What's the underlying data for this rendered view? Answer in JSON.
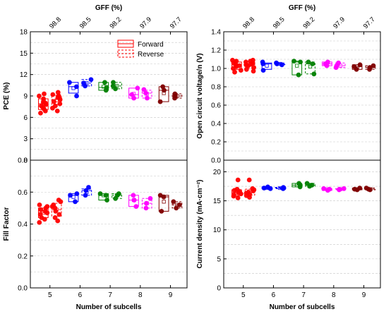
{
  "colors": [
    "#ff0000",
    "#0000ff",
    "#008000",
    "#ff00ff",
    "#800000"
  ],
  "chart_data": [
    {
      "type": "box",
      "panel": "top-left",
      "ylabel": "PCE (%)",
      "top_axis_label": "GFF (%)",
      "top_ticks": [
        "98.8",
        "98.5",
        "98.2",
        "97.9",
        "97.7"
      ],
      "x_ticks": [
        "5",
        "6",
        "7",
        "8",
        "9"
      ],
      "xlabel": "",
      "ylim": [
        0,
        18
      ],
      "yticks": [
        0,
        3,
        6,
        9,
        12,
        15,
        18
      ],
      "legend": {
        "position": "top-right",
        "entries": [
          "Forward",
          "Reverse"
        ]
      },
      "series": [
        {
          "name": "Forward",
          "boxes": [
            {
              "x": 5,
              "q1": 7.1,
              "q3": 8.6,
              "median": 7.9,
              "mean": 7.9,
              "points": [
                6.6,
                6.9,
                7.2,
                7.4,
                7.6,
                7.8,
                8.0,
                8.1,
                8.3,
                8.6,
                9.0,
                9.3
              ]
            },
            {
              "x": 6,
              "q1": 9.4,
              "q3": 10.9,
              "median": 10.3,
              "mean": 10.1,
              "points": [
                9.0,
                10.3,
                10.9
              ]
            },
            {
              "x": 7,
              "q1": 9.8,
              "q3": 10.9,
              "median": 10.2,
              "mean": 10.3,
              "points": [
                9.8,
                10.2,
                10.9
              ]
            },
            {
              "x": 8,
              "q1": 8.7,
              "q3": 10.1,
              "median": 9.2,
              "mean": 9.3,
              "points": [
                8.7,
                9.2,
                10.1
              ]
            },
            {
              "x": 9,
              "q1": 8.2,
              "q3": 10.3,
              "median": 9.8,
              "mean": 9.4,
              "points": [
                8.2,
                9.8,
                10.3
              ]
            }
          ]
        },
        {
          "name": "Reverse",
          "boxes": [
            {
              "x": 5,
              "q1": 7.8,
              "q3": 9.1,
              "median": 8.5,
              "mean": 8.4,
              "points": [
                6.9,
                7.3,
                7.6,
                7.9,
                8.2,
                8.5,
                8.8,
                9.0,
                9.2,
                9.5
              ]
            },
            {
              "x": 6,
              "q1": 10.4,
              "q3": 11.3,
              "median": 10.8,
              "mean": 10.8,
              "points": [
                10.4,
                10.8,
                11.3
              ]
            },
            {
              "x": 7,
              "q1": 10.0,
              "q3": 10.9,
              "median": 10.4,
              "mean": 10.4,
              "points": [
                10.0,
                10.4,
                10.9
              ]
            },
            {
              "x": 8,
              "q1": 8.7,
              "q3": 9.8,
              "median": 9.4,
              "mean": 9.3,
              "points": [
                8.7,
                9.4,
                9.9
              ]
            },
            {
              "x": 9,
              "q1": 8.7,
              "q3": 9.3,
              "median": 9.0,
              "mean": 9.0,
              "points": [
                8.7,
                9.0,
                9.3
              ]
            }
          ]
        }
      ]
    },
    {
      "type": "box",
      "panel": "top-right",
      "ylabel": "Open circuit voltage/n (V)",
      "top_axis_label": "GFF (%)",
      "top_ticks": [
        "98.8",
        "98.5",
        "98.2",
        "97.9",
        "97.7"
      ],
      "x_ticks": [
        "5",
        "6",
        "7",
        "8",
        "9"
      ],
      "xlabel": "",
      "ylim": [
        0,
        1.4
      ],
      "yticks": [
        0.0,
        0.2,
        0.4,
        0.6,
        0.8,
        1.0,
        1.2,
        1.4
      ],
      "series": [
        {
          "name": "Forward",
          "boxes": [
            {
              "x": 5,
              "q1": 0.99,
              "q3": 1.07,
              "median": 1.04,
              "mean": 1.03,
              "points": [
                0.96,
                0.98,
                1.0,
                1.02,
                1.03,
                1.04,
                1.05,
                1.06,
                1.07,
                1.08,
                1.09
              ]
            },
            {
              "x": 6,
              "q1": 0.99,
              "q3": 1.06,
              "median": 1.05,
              "mean": 1.03,
              "points": [
                0.98,
                1.05,
                1.07
              ]
            },
            {
              "x": 7,
              "q1": 0.93,
              "q3": 1.08,
              "median": 1.07,
              "mean": 1.03,
              "points": [
                0.93,
                1.07,
                1.08
              ]
            },
            {
              "x": 8,
              "q1": 1.03,
              "q3": 1.07,
              "median": 1.05,
              "mean": 1.05,
              "points": [
                1.03,
                1.05,
                1.07
              ]
            },
            {
              "x": 9,
              "q1": 0.99,
              "q3": 1.04,
              "median": 1.02,
              "mean": 1.02,
              "points": [
                0.99,
                1.02,
                1.04
              ]
            }
          ]
        },
        {
          "name": "Reverse",
          "boxes": [
            {
              "x": 5,
              "q1": 1.0,
              "q3": 1.07,
              "median": 1.04,
              "mean": 1.04,
              "points": [
                0.97,
                0.99,
                1.01,
                1.03,
                1.04,
                1.05,
                1.06,
                1.07,
                1.08,
                1.09
              ]
            },
            {
              "x": 6,
              "q1": 1.04,
              "q3": 1.06,
              "median": 1.05,
              "mean": 1.05,
              "points": [
                1.04,
                1.05,
                1.06
              ]
            },
            {
              "x": 7,
              "q1": 0.94,
              "q3": 1.07,
              "median": 1.05,
              "mean": 1.02,
              "points": [
                0.94,
                1.05,
                1.07
              ]
            },
            {
              "x": 8,
              "q1": 1.01,
              "q3": 1.06,
              "median": 1.03,
              "mean": 1.03,
              "points": [
                1.01,
                1.03,
                1.06
              ]
            },
            {
              "x": 9,
              "q1": 0.99,
              "q3": 1.03,
              "median": 1.01,
              "mean": 1.01,
              "points": [
                0.99,
                1.01,
                1.03
              ]
            }
          ]
        }
      ]
    },
    {
      "type": "box",
      "panel": "bottom-left",
      "ylabel": "Fill Factor",
      "xlabel": "Number of subcells",
      "x_ticks": [
        "5",
        "6",
        "7",
        "8",
        "9"
      ],
      "ylim": [
        0,
        0.8
      ],
      "yticks": [
        0.0,
        0.2,
        0.4,
        0.6,
        0.8
      ],
      "series": [
        {
          "name": "Forward",
          "boxes": [
            {
              "x": 5,
              "q1": 0.44,
              "q3": 0.5,
              "median": 0.47,
              "mean": 0.47,
              "points": [
                0.41,
                0.43,
                0.44,
                0.46,
                0.47,
                0.48,
                0.49,
                0.5,
                0.51,
                0.52
              ]
            },
            {
              "x": 6,
              "q1": 0.54,
              "q3": 0.59,
              "median": 0.58,
              "mean": 0.57,
              "points": [
                0.54,
                0.58,
                0.59
              ]
            },
            {
              "x": 7,
              "q1": 0.55,
              "q3": 0.59,
              "median": 0.58,
              "mean": 0.58,
              "points": [
                0.55,
                0.58,
                0.59
              ]
            },
            {
              "x": 8,
              "q1": 0.51,
              "q3": 0.58,
              "median": 0.55,
              "mean": 0.55,
              "points": [
                0.51,
                0.55,
                0.58
              ]
            },
            {
              "x": 9,
              "q1": 0.48,
              "q3": 0.58,
              "median": 0.57,
              "mean": 0.54,
              "points": [
                0.48,
                0.57,
                0.58
              ]
            }
          ]
        },
        {
          "name": "Reverse",
          "boxes": [
            {
              "x": 5,
              "q1": 0.45,
              "q3": 0.53,
              "median": 0.49,
              "mean": 0.49,
              "points": [
                0.42,
                0.44,
                0.46,
                0.48,
                0.5,
                0.51,
                0.52,
                0.54,
                0.55
              ]
            },
            {
              "x": 6,
              "q1": 0.58,
              "q3": 0.62,
              "median": 0.61,
              "mean": 0.6,
              "points": [
                0.58,
                0.61,
                0.63
              ]
            },
            {
              "x": 7,
              "q1": 0.56,
              "q3": 0.59,
              "median": 0.58,
              "mean": 0.58,
              "points": [
                0.56,
                0.58,
                0.59
              ]
            },
            {
              "x": 8,
              "q1": 0.5,
              "q3": 0.56,
              "median": 0.53,
              "mean": 0.53,
              "points": [
                0.5,
                0.53,
                0.56
              ]
            },
            {
              "x": 9,
              "q1": 0.5,
              "q3": 0.54,
              "median": 0.52,
              "mean": 0.52,
              "points": [
                0.5,
                0.52,
                0.54
              ]
            }
          ]
        }
      ]
    },
    {
      "type": "box",
      "panel": "bottom-right",
      "ylabel": "Current density (mA·cm⁻²)",
      "xlabel": "Number of subcells",
      "x_ticks": [
        "5",
        "6",
        "7",
        "8",
        "9"
      ],
      "ylim": [
        0,
        22
      ],
      "yticks": [
        0,
        5,
        10,
        15,
        20
      ],
      "series": [
        {
          "name": "Forward",
          "boxes": [
            {
              "x": 5,
              "q1": 15.9,
              "q3": 16.9,
              "median": 16.4,
              "mean": 16.4,
              "points": [
                15.5,
                15.8,
                16.0,
                16.2,
                16.4,
                16.6,
                16.8,
                17.0,
                18.6
              ]
            },
            {
              "x": 6,
              "q1": 17.1,
              "q3": 17.4,
              "median": 17.2,
              "mean": 17.2,
              "points": [
                17.1,
                17.2,
                17.4
              ]
            },
            {
              "x": 7,
              "q1": 17.4,
              "q3": 18.0,
              "median": 17.7,
              "mean": 17.7,
              "points": [
                17.4,
                17.7,
                18.0
              ]
            },
            {
              "x": 8,
              "q1": 16.8,
              "q3": 17.1,
              "median": 17.0,
              "mean": 17.0,
              "points": [
                16.8,
                17.0,
                17.1
              ]
            },
            {
              "x": 9,
              "q1": 16.9,
              "q3": 17.2,
              "median": 17.0,
              "mean": 17.0,
              "points": [
                16.9,
                17.0,
                17.2
              ]
            }
          ]
        },
        {
          "name": "Reverse",
          "boxes": [
            {
              "x": 5,
              "q1": 16.0,
              "q3": 17.0,
              "median": 16.5,
              "mean": 16.5,
              "points": [
                15.6,
                15.9,
                16.1,
                16.3,
                16.5,
                16.7,
                16.9,
                17.1,
                18.6
              ]
            },
            {
              "x": 6,
              "q1": 17.1,
              "q3": 17.3,
              "median": 17.2,
              "mean": 17.2,
              "points": [
                17.1,
                17.2,
                17.3
              ]
            },
            {
              "x": 7,
              "q1": 17.5,
              "q3": 18.0,
              "median": 17.7,
              "mean": 17.7,
              "points": [
                17.5,
                17.7,
                18.0
              ]
            },
            {
              "x": 8,
              "q1": 16.9,
              "q3": 17.1,
              "median": 17.0,
              "mean": 17.0,
              "points": [
                16.9,
                17.0,
                17.1
              ]
            },
            {
              "x": 9,
              "q1": 16.9,
              "q3": 17.2,
              "median": 17.0,
              "mean": 17.0,
              "points": [
                16.9,
                17.0,
                17.2
              ]
            }
          ]
        }
      ]
    }
  ]
}
